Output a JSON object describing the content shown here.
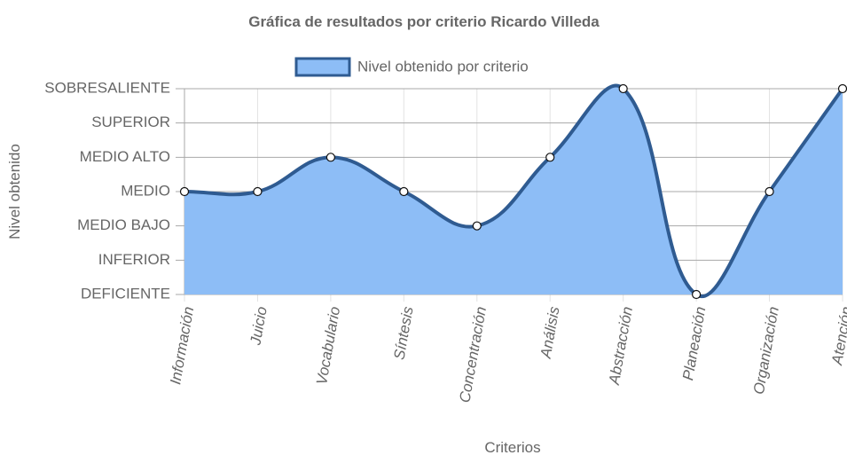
{
  "chart_data": {
    "type": "line",
    "title": "Gráfica de resultados por criterio Ricardo Villeda",
    "x_label": "Criterios",
    "y_label": "Nivel obtenido",
    "categories": [
      "Información",
      "Juicio",
      "Vocabulario",
      "Síntesis",
      "Concentración",
      "Análisis",
      "Abstracción",
      "Planeación",
      "Organización",
      "Atención"
    ],
    "series": [
      {
        "name": "Nivel obtenido por criterio",
        "color": "#2f5b91",
        "fill_color": "#8dbdf6",
        "values": [
          3,
          3,
          4,
          3,
          2,
          4,
          6,
          0,
          3,
          6
        ]
      }
    ],
    "ylim": [
      0,
      6
    ],
    "yticks": [
      {
        "value": 0,
        "label": "DEFICIENTE"
      },
      {
        "value": 1,
        "label": "INFERIOR"
      },
      {
        "value": 2,
        "label": "MEDIO BAJO"
      },
      {
        "value": 3,
        "label": "MEDIO"
      },
      {
        "value": 4,
        "label": "MEDIO ALTO"
      },
      {
        "value": 5,
        "label": "SUPERIOR"
      },
      {
        "value": 6,
        "label": "SOBRESALIENTE"
      }
    ],
    "grid": true,
    "legend": "top"
  }
}
